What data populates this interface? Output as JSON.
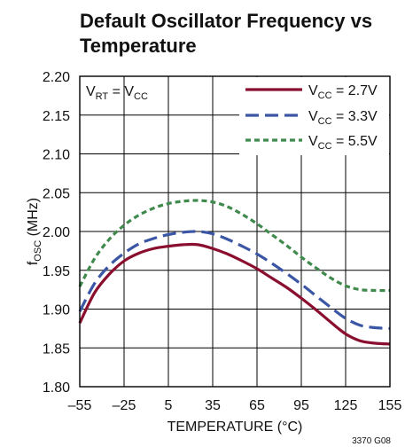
{
  "chart_data": {
    "type": "line",
    "title_line1": "Default Oscillator Frequency vs",
    "title_line2": "Temperature",
    "xlabel": "TEMPERATURE (°C)",
    "ylabel": {
      "main": "f",
      "sub": "OSC",
      "unit": " (MHz)"
    },
    "xlim": [
      -55,
      155
    ],
    "ylim": [
      1.8,
      2.2
    ],
    "x_ticks": [
      -55,
      -25,
      5,
      35,
      65,
      95,
      125,
      155
    ],
    "x_tick_labels": [
      "–55",
      "–25",
      "5",
      "35",
      "65",
      "95",
      "125",
      "155"
    ],
    "y_ticks": [
      1.8,
      1.85,
      1.9,
      1.95,
      2.0,
      2.05,
      2.1,
      2.15,
      2.2
    ],
    "y_tick_labels": [
      "1.80",
      "1.85",
      "1.90",
      "1.95",
      "2.00",
      "2.05",
      "2.10",
      "2.15",
      "2.20"
    ],
    "grid": true,
    "legend_position": "top-right",
    "condition": {
      "main": "V",
      "sub": "RT",
      "mid": " = V",
      "sub2": "CC"
    },
    "series": [
      {
        "legend_main": "V",
        "legend_sub": "CC",
        "legend_rest": " = 2.7V",
        "color": "#8a0e2e",
        "style": "solid",
        "x": [
          -55,
          -45,
          -35,
          -25,
          -15,
          -5,
          5,
          15,
          25,
          35,
          45,
          55,
          65,
          75,
          85,
          95,
          105,
          115,
          125,
          135,
          145,
          155
        ],
        "y": [
          1.882,
          1.921,
          1.945,
          1.962,
          1.972,
          1.978,
          1.981,
          1.983,
          1.983,
          1.978,
          1.971,
          1.962,
          1.952,
          1.94,
          1.928,
          1.914,
          1.899,
          1.883,
          1.868,
          1.859,
          1.856,
          1.855
        ]
      },
      {
        "legend_main": "V",
        "legend_sub": "CC",
        "legend_rest": " = 3.3V",
        "color": "#3a56a5",
        "style": "dashed",
        "x": [
          -55,
          -45,
          -35,
          -25,
          -15,
          -5,
          5,
          15,
          25,
          35,
          45,
          55,
          65,
          75,
          85,
          95,
          105,
          115,
          125,
          135,
          145,
          155
        ],
        "y": [
          1.897,
          1.933,
          1.956,
          1.972,
          1.984,
          1.991,
          1.996,
          1.999,
          2.0,
          1.997,
          1.99,
          1.981,
          1.971,
          1.959,
          1.946,
          1.932,
          1.917,
          1.902,
          1.888,
          1.879,
          1.876,
          1.875
        ]
      },
      {
        "legend_main": "V",
        "legend_sub": "CC",
        "legend_rest": " = 5.5V",
        "color": "#3f8a4c",
        "style": "dotted",
        "x": [
          -55,
          -45,
          -35,
          -25,
          -15,
          -5,
          5,
          15,
          25,
          35,
          45,
          55,
          65,
          75,
          85,
          95,
          105,
          115,
          125,
          135,
          145,
          155
        ],
        "y": [
          1.929,
          1.965,
          1.99,
          2.008,
          2.021,
          2.03,
          2.036,
          2.039,
          2.04,
          2.038,
          2.032,
          2.022,
          2.01,
          1.996,
          1.982,
          1.967,
          1.953,
          1.94,
          1.93,
          1.925,
          1.924,
          1.924
        ]
      }
    ],
    "figure_id": "3370 G08"
  }
}
